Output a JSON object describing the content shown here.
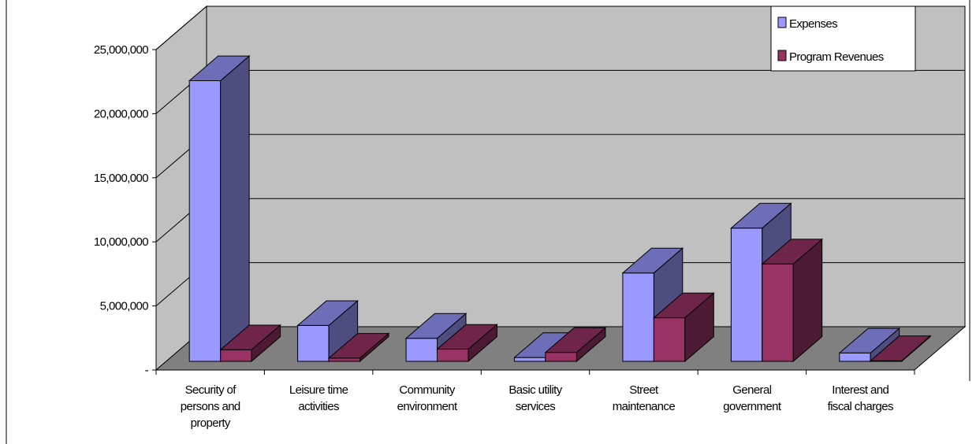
{
  "chart_data": {
    "type": "bar",
    "style": "3d-clustered-column",
    "categories": [
      [
        "Security of",
        "persons and",
        "property"
      ],
      [
        "Leisure time",
        "activities"
      ],
      [
        "Community",
        "environment"
      ],
      [
        "Basic utility",
        "services"
      ],
      [
        "Street",
        "maintenance"
      ],
      [
        "General",
        "government"
      ],
      [
        "Interest and",
        "fiscal charges"
      ]
    ],
    "series": [
      {
        "name": "Expenses",
        "color": "#9999ff",
        "values": [
          21900000,
          2800000,
          1800000,
          300000,
          6900000,
          10400000,
          650000
        ]
      },
      {
        "name": "Program Revenues",
        "color": "#993366",
        "values": [
          900000,
          250000,
          950000,
          700000,
          3400000,
          7600000,
          50000
        ]
      }
    ],
    "ylim": [
      0,
      25000000
    ],
    "yticks": [
      {
        "value": 0,
        "label": "-"
      },
      {
        "value": 5000000,
        "label": "5,000,000"
      },
      {
        "value": 10000000,
        "label": "10,000,000"
      },
      {
        "value": 15000000,
        "label": "15,000,000"
      },
      {
        "value": 20000000,
        "label": "20,000,000"
      },
      {
        "value": 25000000,
        "label": "25,000,000"
      }
    ],
    "grid": true,
    "legend_position": "top-right",
    "wall_color": "#c0c0c0",
    "floor_color": "#808080"
  }
}
